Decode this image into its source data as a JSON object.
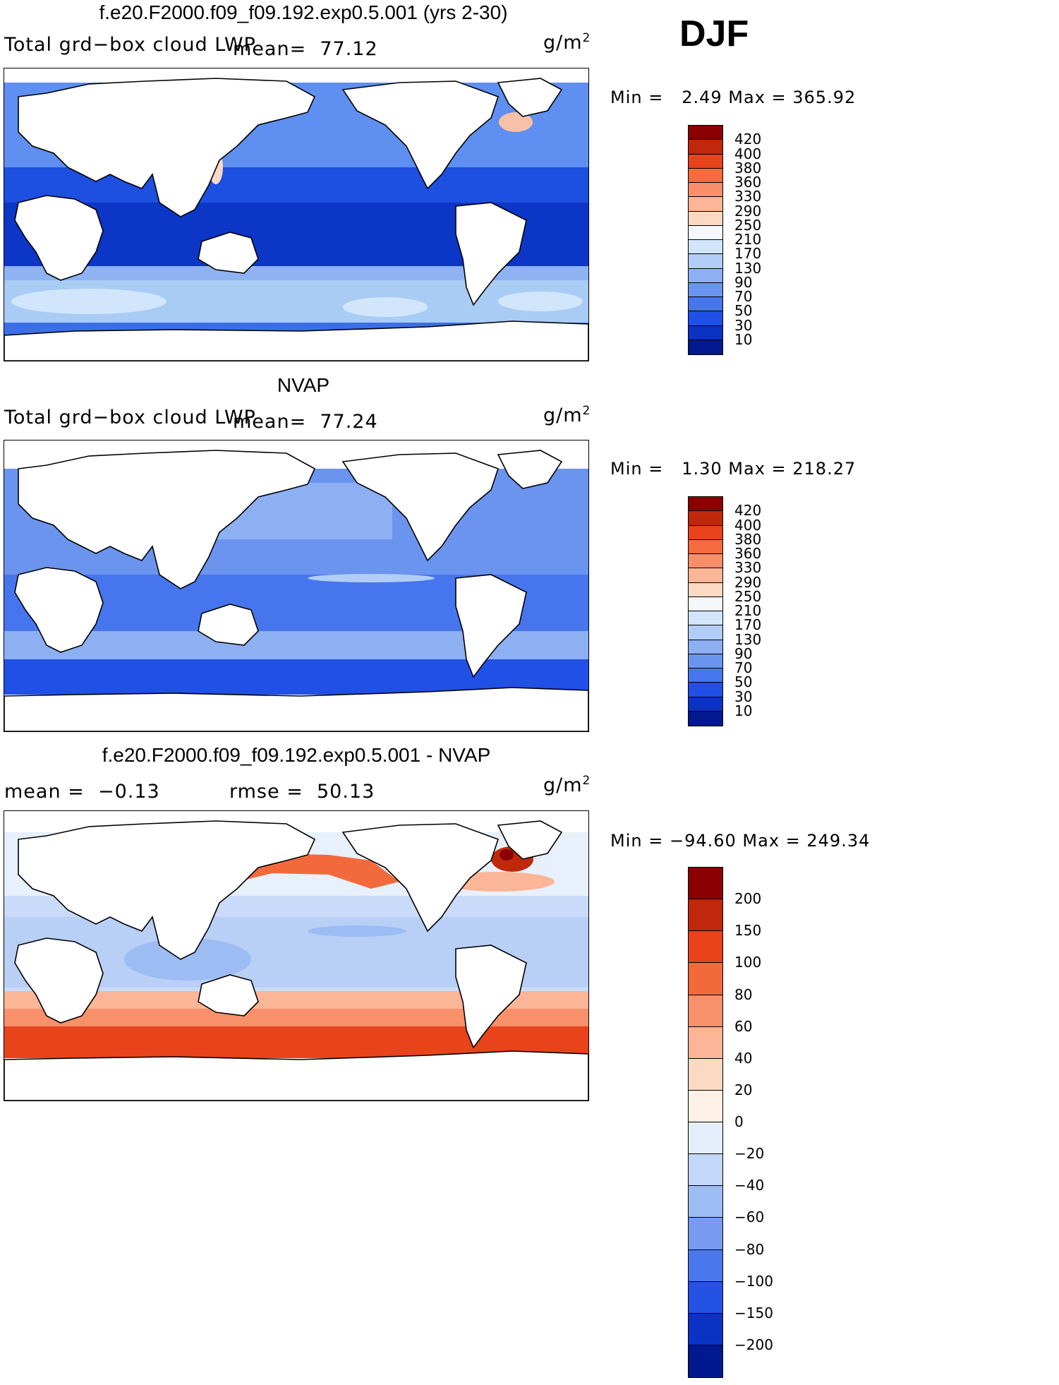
{
  "season": "DJF",
  "panels": [
    {
      "title": "f.e20.F2000.f09_f09.192.exp0.5.001 (yrs 2-30)",
      "variable": "Total grd−box cloud LWP",
      "stat_left": "mean=  77.12",
      "stat_right": "",
      "units_base": "g/m",
      "units_exp": "2",
      "minmax": "Min =   2.49 Max = 365.92",
      "colorbar": {
        "labels": [
          "420",
          "400",
          "380",
          "360",
          "330",
          "290",
          "250",
          "210",
          "170",
          "130",
          "90",
          "70",
          "50",
          "30",
          "10"
        ],
        "colors": [
          "#8b0000",
          "#c0280b",
          "#e8431a",
          "#f66b3d",
          "#f98f6a",
          "#fbb597",
          "#fcd9c3",
          "#f4f7fb",
          "#d2e5fb",
          "#b1cdf7",
          "#8db0f3",
          "#6b94ef",
          "#4675ee",
          "#2150e6",
          "#0a33c4",
          "#00198f"
        ]
      },
      "ocean_palette": [
        "#a9ccf5",
        "#d2e6fb",
        "#8fb2f2",
        "#5f8ff0",
        "#3b6fe8",
        "#1d4fe0",
        "#0c36c6"
      ],
      "highlight_colors": [
        "#f7c1a8",
        "#fbd9c8"
      ]
    },
    {
      "title": "NVAP",
      "variable": "Total grd−box cloud LWP",
      "stat_left": "mean=  77.24",
      "stat_right": "",
      "units_base": "g/m",
      "units_exp": "2",
      "minmax": "Min =   1.30 Max = 218.27",
      "colorbar": {
        "labels": [
          "420",
          "400",
          "380",
          "360",
          "330",
          "290",
          "250",
          "210",
          "170",
          "130",
          "90",
          "70",
          "50",
          "30",
          "10"
        ],
        "colors": [
          "#8b0000",
          "#c0280b",
          "#e8431a",
          "#f66b3d",
          "#f98f6a",
          "#fbb597",
          "#fcd9c3",
          "#f4f7fb",
          "#d2e5fb",
          "#b1cdf7",
          "#8db0f3",
          "#6b94ef",
          "#4675ee",
          "#2150e6",
          "#0a33c4",
          "#00198f"
        ]
      },
      "ocean_palette": [
        "#b1cdf7",
        "#8db0f3",
        "#6b94ef",
        "#4675ee",
        "#2150e6",
        "#1d44d8"
      ],
      "highlight_colors": []
    },
    {
      "title": "f.e20.F2000.f09_f09.192.exp0.5.001 - NVAP",
      "variable": "",
      "stat_left": "mean =  −0.13",
      "stat_right": "rmse =  50.13",
      "units_base": "g/m",
      "units_exp": "2",
      "minmax": "Min = −94.60 Max = 249.34",
      "colorbar": {
        "labels": [
          "200",
          "150",
          "100",
          "80",
          "60",
          "40",
          "20",
          "0",
          "−20",
          "−40",
          "−60",
          "−80",
          "−100",
          "−150",
          "−200"
        ],
        "colors": [
          "#8b0000",
          "#c0280b",
          "#e8431a",
          "#f26a3c",
          "#f8906b",
          "#fbb597",
          "#fcd9c3",
          "#fdf0e6",
          "#e4eefb",
          "#c3d7f8",
          "#9dbcf4",
          "#779cf0",
          "#4a78ec",
          "#2452e4",
          "#0a33c4",
          "#00198f"
        ]
      },
      "ocean_palette": [
        "#d3e2f9",
        "#b8cff6",
        "#9dbcf4",
        "#c9dbf8",
        "#e8f0fb"
      ],
      "highlight_colors": [
        "#f26a3c",
        "#e8431a",
        "#f8906b",
        "#fbb597",
        "#c0280b",
        "#8b0000"
      ]
    }
  ]
}
